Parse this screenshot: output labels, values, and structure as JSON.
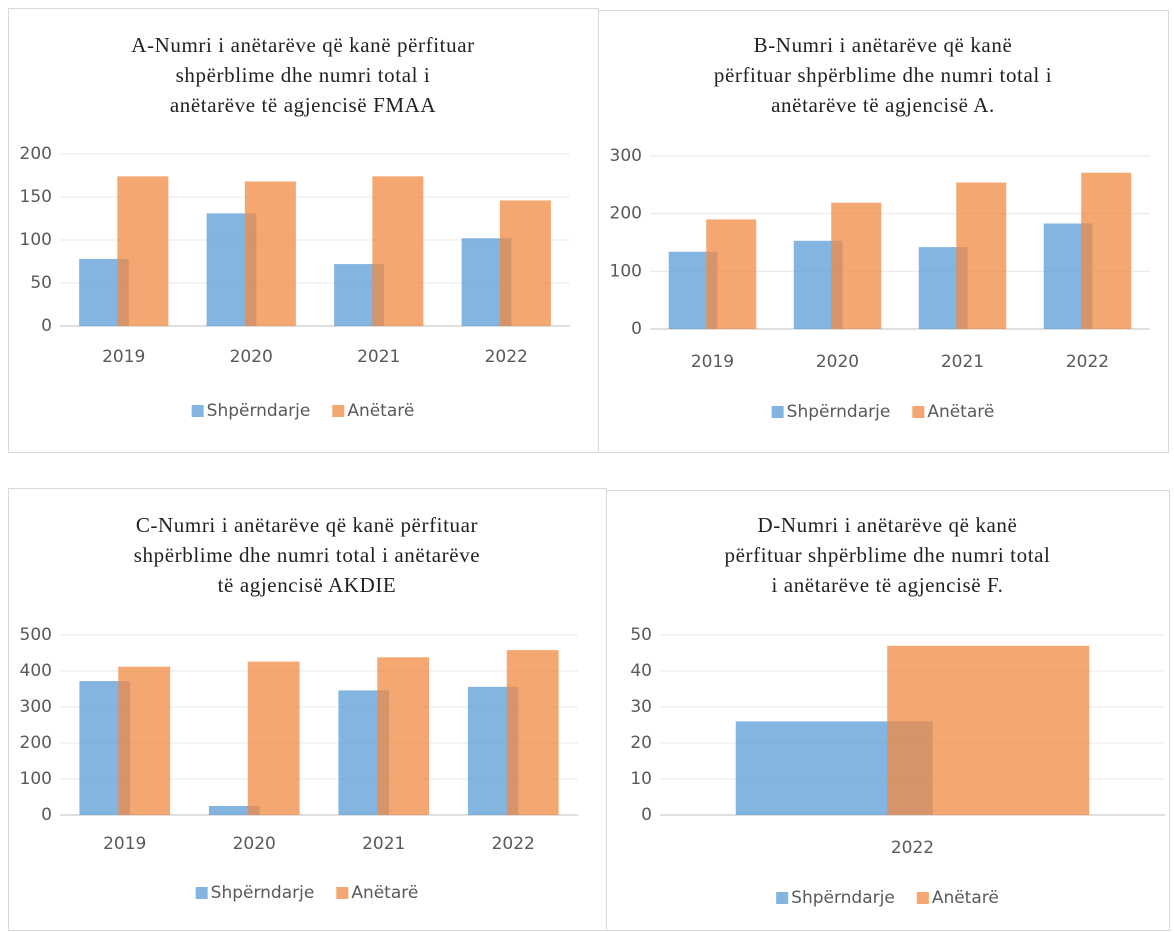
{
  "chart_data": [
    {
      "type": "bar",
      "title": [
        "A-Numri i anëtarëve që kanë përfituar",
        "shpërblime dhe numri total i",
        "anëtarëve të agjencisë FMAA"
      ],
      "categories": [
        "2019",
        "2020",
        "2021",
        "2022"
      ],
      "series": [
        {
          "name": "Shpërndarje",
          "color": "#5b9bd5",
          "values": [
            78,
            131,
            72,
            102
          ]
        },
        {
          "name": "Anëtarë",
          "color": "#f08a42",
          "values": [
            174,
            168,
            174,
            146
          ]
        }
      ],
      "ylim": [
        0,
        200
      ],
      "yticks": [
        0,
        50,
        100,
        150,
        200
      ],
      "grid": true,
      "legend": "bottom"
    },
    {
      "type": "bar",
      "title": [
        "B-Numri i anëtarëve që kanë",
        "përfituar shpërblime dhe numri total i",
        "anëtarëve të agjencisë A."
      ],
      "categories": [
        "2019",
        "2020",
        "2021",
        "2022"
      ],
      "series": [
        {
          "name": "Shpërndarje",
          "color": "#5b9bd5",
          "values": [
            134,
            153,
            142,
            183
          ]
        },
        {
          "name": "Anëtarë",
          "color": "#f08a42",
          "values": [
            190,
            219,
            254,
            271
          ]
        }
      ],
      "ylim": [
        0,
        300
      ],
      "yticks": [
        0,
        100,
        200,
        300
      ],
      "grid": true,
      "legend": "bottom"
    },
    {
      "type": "bar",
      "title": [
        "C-Numri i anëtarëve që kanë përfituar",
        "shpërblime dhe numri total i anëtarëve",
        "të agjencisë AKDIE"
      ],
      "categories": [
        "2019",
        "2020",
        "2021",
        "2022"
      ],
      "series": [
        {
          "name": "Shpërndarje",
          "color": "#5b9bd5",
          "values": [
            372,
            25,
            346,
            356
          ]
        },
        {
          "name": "Anëtarë",
          "color": "#f08a42",
          "values": [
            412,
            426,
            438,
            458
          ]
        }
      ],
      "ylim": [
        0,
        500
      ],
      "yticks": [
        0,
        100,
        200,
        300,
        400,
        500
      ],
      "grid": true,
      "legend": "bottom"
    },
    {
      "type": "bar",
      "title": [
        "D-Numri i anëtarëve që kanë",
        "përfituar shpërblime dhe numri total",
        "i anëtarëve të agjencisë F."
      ],
      "categories": [
        "2022"
      ],
      "series": [
        {
          "name": "Shpërndarje",
          "color": "#5b9bd5",
          "values": [
            26
          ]
        },
        {
          "name": "Anëtarë",
          "color": "#f08a42",
          "values": [
            47
          ]
        }
      ],
      "ylim": [
        0,
        50
      ],
      "yticks": [
        0,
        10,
        20,
        30,
        40,
        50
      ],
      "grid": true,
      "legend": "bottom"
    }
  ]
}
